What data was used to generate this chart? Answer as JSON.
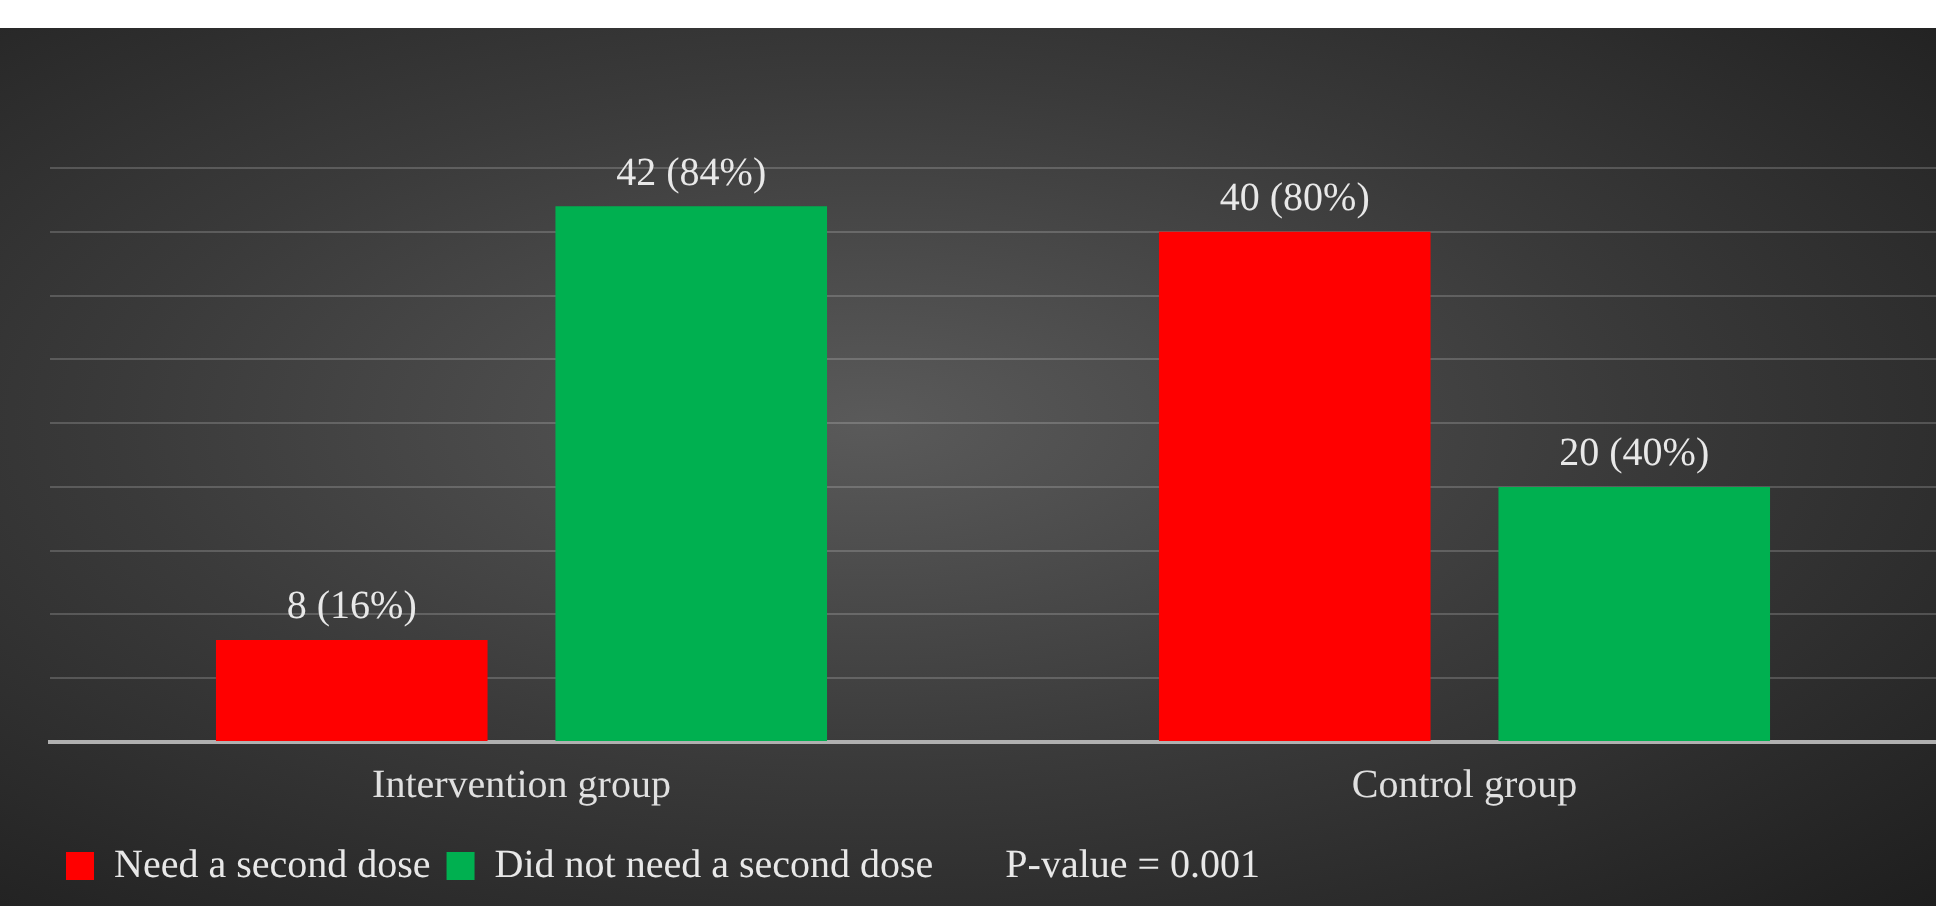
{
  "chart_data": {
    "type": "bar",
    "categories": [
      "Intervention group",
      "Control group"
    ],
    "series": [
      {
        "name": "Need a second dose",
        "color": "#ff0000",
        "values": [
          8,
          40
        ],
        "value_labels": [
          "8 (16%)",
          "40 (80%)"
        ]
      },
      {
        "name": "Did not need a second dose",
        "color": "#00b050",
        "values": [
          42,
          20
        ],
        "value_labels": [
          "42 (84%)",
          "20 (40%)"
        ]
      }
    ],
    "ylim": [
      0,
      45
    ],
    "yticks": [
      {
        "value": 0,
        "label": null
      },
      {
        "value": 5,
        "label": null
      },
      {
        "value": 10,
        "label": null
      },
      {
        "value": 15,
        "label": null
      },
      {
        "value": 20,
        "label": null
      },
      {
        "value": 25,
        "label": null
      },
      {
        "value": 30,
        "label": null
      },
      {
        "value": 35,
        "label": null
      },
      {
        "value": 40,
        "label": null
      },
      {
        "value": 45,
        "label": null
      }
    ],
    "tick_labels": "x",
    "grid": "y",
    "legend": "bottom",
    "annotations": [
      "P-value = 0.001"
    ]
  }
}
